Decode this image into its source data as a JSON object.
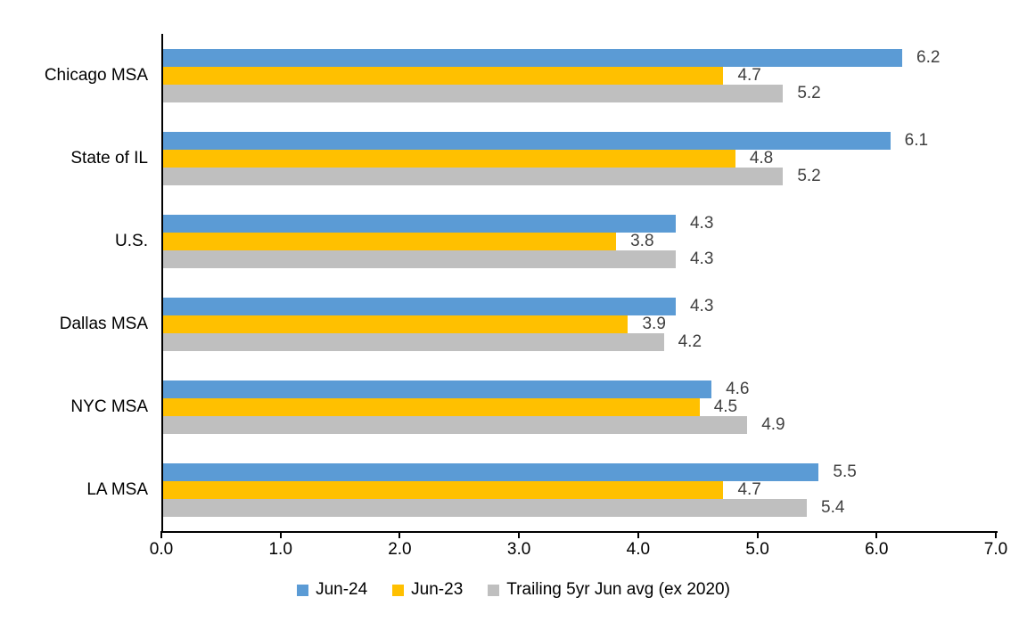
{
  "chart_data": {
    "type": "bar",
    "orientation": "horizontal",
    "title": "",
    "xlabel": "",
    "ylabel": "",
    "categories": [
      "Chicago MSA",
      "State of IL",
      "U.S.",
      "Dallas MSA",
      "NYC MSA",
      "LA MSA"
    ],
    "series": [
      {
        "name": "Jun-24",
        "color": "#5B9BD5",
        "values": [
          6.2,
          6.1,
          4.3,
          4.3,
          4.6,
          5.5
        ],
        "labels": [
          "6.2",
          "6.1",
          "4.3",
          "4.3",
          "4.6",
          "5.5"
        ]
      },
      {
        "name": "Jun-23",
        "color": "#FFC000",
        "values": [
          4.7,
          4.8,
          3.8,
          3.9,
          4.5,
          4.7
        ],
        "labels": [
          "4.7",
          "4.8",
          "3.8",
          "3.9",
          "4.5",
          "4.7"
        ]
      },
      {
        "name": "Trailing 5yr Jun avg (ex 2020)",
        "color": "#BFBFBF",
        "values": [
          5.2,
          5.2,
          4.3,
          4.2,
          4.9,
          5.4
        ],
        "labels": [
          "5.2",
          "5.2",
          "4.3",
          "4.2",
          "4.9",
          "5.4"
        ]
      }
    ],
    "xlim": [
      0,
      7
    ],
    "x_ticks": [
      "0.0",
      "1.0",
      "2.0",
      "3.0",
      "4.0",
      "5.0",
      "6.0",
      "7.0"
    ],
    "grid": false,
    "legend_position": "bottom",
    "colors": {
      "data_label": "#404040",
      "axis": "#000000",
      "text": "#000000",
      "background": "#FFFFFF"
    }
  }
}
